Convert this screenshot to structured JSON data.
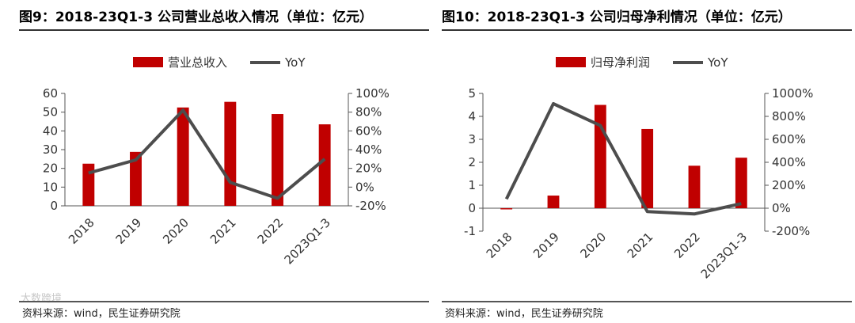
{
  "chart_data": [
    {
      "type": "bar",
      "title": "图9：2018-23Q1-3 公司营业总收入情况（单位：亿元）",
      "categories": [
        "2018",
        "2019",
        "2020",
        "2021",
        "2022",
        "2023Q1-3"
      ],
      "series": [
        {
          "name": "营业总收入",
          "type": "bar",
          "axis": "left",
          "color": "#c00000",
          "values": [
            22.5,
            28.8,
            52.5,
            55.5,
            49.0,
            43.5
          ]
        },
        {
          "name": "YoY",
          "type": "line",
          "axis": "right",
          "color": "#4d4d4d",
          "values": [
            15,
            29,
            82,
            5,
            -12,
            30
          ]
        }
      ],
      "y_left": {
        "min": 0,
        "max": 60,
        "ticks": [
          "0",
          "10",
          "20",
          "30",
          "40",
          "50",
          "60"
        ]
      },
      "y_right": {
        "min": -20,
        "max": 100,
        "ticks": [
          "-20%",
          "0%",
          "20%",
          "40%",
          "60%",
          "80%",
          "100%"
        ]
      },
      "legend_position": "top"
    },
    {
      "type": "bar",
      "title": "图10：2018-23Q1-3 公司归母净利情况（单位：亿元）",
      "categories": [
        "2018",
        "2019",
        "2020",
        "2021",
        "2022",
        "2023Q1-3"
      ],
      "series": [
        {
          "name": "归母净利润",
          "type": "bar",
          "axis": "left",
          "color": "#c00000",
          "values": [
            -0.05,
            0.55,
            4.5,
            3.45,
            1.85,
            2.2
          ]
        },
        {
          "name": "YoY",
          "type": "line",
          "axis": "right",
          "color": "#4d4d4d",
          "values": [
            80,
            910,
            720,
            -30,
            -50,
            40
          ]
        }
      ],
      "y_left": {
        "min": -1,
        "max": 5,
        "ticks": [
          "-1",
          "0",
          "1",
          "2",
          "3",
          "4",
          "5"
        ]
      },
      "y_right": {
        "min": -200,
        "max": 1000,
        "ticks": [
          "-200%",
          "0%",
          "200%",
          "400%",
          "600%",
          "800%",
          "1000%"
        ]
      },
      "legend_position": "top"
    }
  ],
  "source_text": "资料来源：wind，民生证券研究院",
  "watermark_text": "大数跨境"
}
